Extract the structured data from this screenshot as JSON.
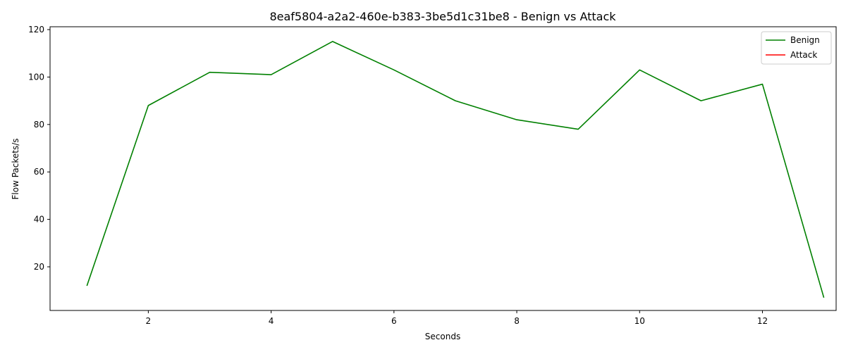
{
  "chart_data": {
    "type": "line",
    "title": "8eaf5804-a2a2-460e-b383-3be5d1c31be8 - Benign vs Attack",
    "xlabel": "Seconds",
    "ylabel": "Flow Packets/s",
    "xlim": [
      0.4,
      13.2
    ],
    "ylim": [
      1.6,
      121.2
    ],
    "xticks": [
      2,
      4,
      6,
      8,
      10,
      12
    ],
    "yticks": [
      20,
      40,
      60,
      80,
      100,
      120
    ],
    "grid": false,
    "legend_position": "top-right",
    "series": [
      {
        "name": "Benign",
        "color": "#008000",
        "x": [
          1,
          2,
          3,
          4,
          5,
          6,
          7,
          8,
          9,
          10,
          11,
          12,
          13
        ],
        "values": [
          12,
          88,
          102,
          101,
          115,
          103,
          90,
          82,
          78,
          103,
          90,
          97,
          7
        ]
      },
      {
        "name": "Attack",
        "color": "#ff0000",
        "x": [],
        "values": []
      }
    ]
  }
}
